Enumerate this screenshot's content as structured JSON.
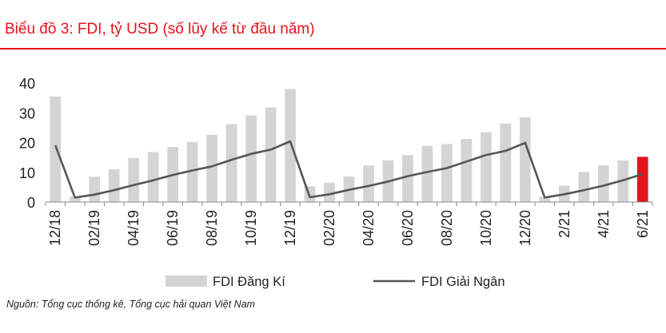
{
  "title": "Biểu đồ 3: FDI, tỷ USD (số lũy kế từ đầu năm)",
  "source": "Nguồn: Tổng cục thống kê, Tổng cục hải quan Việt Nam",
  "colors": {
    "title": "#e3131b",
    "bars": "#d4d4d4",
    "highlight_bar": "#e3131b",
    "line": "#555555",
    "axis_text": "#222222"
  },
  "chart_data": {
    "type": "bar",
    "ylim": [
      0,
      40
    ],
    "yticks": [
      0,
      10,
      20,
      30,
      40
    ],
    "grid": false,
    "legend_position": "bottom",
    "categories": [
      "12/18",
      "01/19",
      "02/19",
      "03/19",
      "04/19",
      "05/19",
      "06/19",
      "07/19",
      "08/19",
      "09/19",
      "10/19",
      "11/19",
      "12/19",
      "01/20",
      "02/20",
      "03/20",
      "04/20",
      "05/20",
      "06/20",
      "07/20",
      "08/20",
      "09/20",
      "10/20",
      "11/20",
      "12/20",
      "1/21",
      "2/21",
      "3/21",
      "4/21",
      "5/21",
      "6/21"
    ],
    "tick_labels": [
      "12/18",
      "",
      "02/19",
      "",
      "04/19",
      "",
      "06/19",
      "",
      "08/19",
      "",
      "10/19",
      "",
      "12/19",
      "",
      "02/20",
      "",
      "04/20",
      "",
      "06/20",
      "",
      "08/20",
      "",
      "10/20",
      "",
      "12/20",
      "",
      "2/21",
      "",
      "4/21",
      "",
      "6/21"
    ],
    "series": [
      {
        "name": "FDI Đăng Kí",
        "type": "bar",
        "values": [
          35.5,
          1.8,
          8.5,
          11.0,
          14.8,
          16.8,
          18.5,
          20.2,
          22.6,
          26.2,
          29.1,
          31.8,
          38.0,
          5.3,
          6.5,
          8.6,
          12.3,
          14.0,
          15.8,
          18.9,
          19.5,
          21.2,
          23.5,
          26.4,
          28.5,
          1.8,
          5.5,
          10.1,
          12.3,
          14.0,
          15.2
        ]
      },
      {
        "name": "FDI Giải Ngân",
        "type": "line",
        "values": [
          19.1,
          1.5,
          2.5,
          4.0,
          5.7,
          7.3,
          9.1,
          10.6,
          12.0,
          14.2,
          16.2,
          17.6,
          20.4,
          1.6,
          2.6,
          4.1,
          5.4,
          6.9,
          8.7,
          10.1,
          11.4,
          13.6,
          15.8,
          17.2,
          19.9,
          1.5,
          2.6,
          4.0,
          5.5,
          7.3,
          9.4
        ]
      }
    ],
    "highlight_index": 30
  }
}
